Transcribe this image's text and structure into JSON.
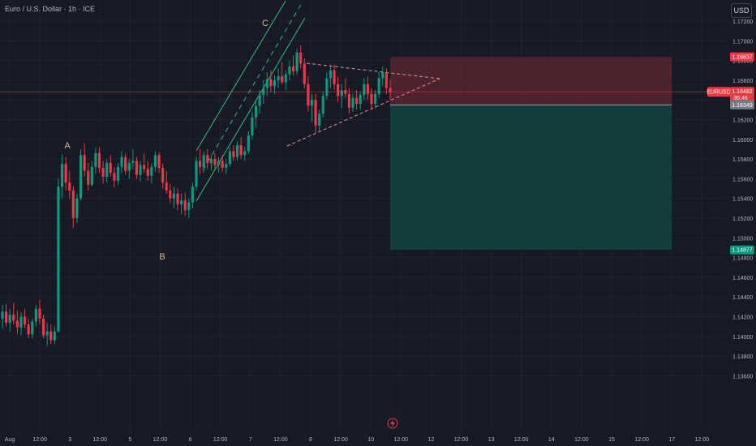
{
  "chart_data": {
    "type": "candlestick",
    "title": "Euro / U.S. Dollar · 1h · ICE",
    "currency_button": "USD",
    "price_axis": {
      "ticks": [
        1.172,
        1.17,
        1.168,
        1.166,
        1.164,
        1.162,
        1.16,
        1.158,
        1.156,
        1.154,
        1.152,
        1.15,
        1.148,
        1.146,
        1.144,
        1.142,
        1.14,
        1.138,
        1.136
      ],
      "tick_labels": [
        "1.17200",
        "1.17000",
        "1.16800",
        "1.16600",
        "1.16400",
        "1.16200",
        "1.16000",
        "1.15800",
        "1.15600",
        "1.15400",
        "1.15200",
        "1.15000",
        "1.14800",
        "1.14600",
        "1.14400",
        "1.14200",
        "1.14000",
        "1.13800",
        "1.13600"
      ],
      "range": [
        1.1355,
        1.1733
      ]
    },
    "time_axis": {
      "labels": [
        "Aug",
        "12:00",
        "3",
        "12:00",
        "5",
        "12:00",
        "6",
        "12:00",
        "7",
        "12:00",
        "8",
        "12:00",
        "10",
        "12:00",
        "12",
        "12:00",
        "13",
        "12:00",
        "14",
        "12:00",
        "15",
        "12:00",
        "17",
        "12:00"
      ]
    },
    "wave_labels": [
      "A",
      "B",
      "C"
    ],
    "position": {
      "stop_label": "1.16837",
      "entry_label": "1.16349",
      "target_label": "1.14877",
      "stop": 1.16837,
      "entry": 1.16349,
      "target": 1.14877
    },
    "current_price": {
      "symbol": "EURUSD",
      "price_label": "1.16482",
      "countdown": "36:46",
      "price": 1.16482
    },
    "candles": [
      [
        1.1418,
        1.1432,
        1.1408,
        1.1425
      ],
      [
        1.1425,
        1.1433,
        1.141,
        1.1414
      ],
      [
        1.1414,
        1.1428,
        1.1405,
        1.1422
      ],
      [
        1.1422,
        1.1434,
        1.1412,
        1.1416
      ],
      [
        1.1416,
        1.1426,
        1.1402,
        1.1409
      ],
      [
        1.1409,
        1.1424,
        1.1401,
        1.142
      ],
      [
        1.142,
        1.1428,
        1.1408,
        1.1412
      ],
      [
        1.1412,
        1.1418,
        1.1398,
        1.1402
      ],
      [
        1.1402,
        1.1418,
        1.1398,
        1.1415
      ],
      [
        1.1415,
        1.1432,
        1.141,
        1.1428
      ],
      [
        1.1428,
        1.1437,
        1.1412,
        1.1418
      ],
      [
        1.1418,
        1.1422,
        1.1398,
        1.1401
      ],
      [
        1.1401,
        1.1414,
        1.139,
        1.1405
      ],
      [
        1.1405,
        1.1412,
        1.1392,
        1.1396
      ],
      [
        1.1396,
        1.141,
        1.1392,
        1.1405
      ],
      [
        1.1405,
        1.156,
        1.1404,
        1.1552
      ],
      [
        1.1552,
        1.1585,
        1.154,
        1.1575
      ],
      [
        1.1575,
        1.1582,
        1.1548,
        1.1556
      ],
      [
        1.1556,
        1.1568,
        1.154,
        1.1548
      ],
      [
        1.1548,
        1.1553,
        1.151,
        1.152
      ],
      [
        1.152,
        1.1545,
        1.1515,
        1.154
      ],
      [
        1.154,
        1.159,
        1.1538,
        1.1584
      ],
      [
        1.1584,
        1.1596,
        1.1562,
        1.1568
      ],
      [
        1.1568,
        1.1576,
        1.1548,
        1.1554
      ],
      [
        1.1554,
        1.1578,
        1.1552,
        1.1572
      ],
      [
        1.1572,
        1.1592,
        1.1565,
        1.1586
      ],
      [
        1.1586,
        1.1592,
        1.1566,
        1.1571
      ],
      [
        1.1571,
        1.1578,
        1.1555,
        1.1562
      ],
      [
        1.1562,
        1.158,
        1.1556,
        1.1576
      ],
      [
        1.1576,
        1.1584,
        1.1562,
        1.1566
      ],
      [
        1.1566,
        1.1572,
        1.1551,
        1.1558
      ],
      [
        1.1558,
        1.1576,
        1.1554,
        1.1572
      ],
      [
        1.1572,
        1.1588,
        1.1566,
        1.1582
      ],
      [
        1.1582,
        1.1586,
        1.1564,
        1.1568
      ],
      [
        1.1568,
        1.158,
        1.156,
        1.1576
      ],
      [
        1.1576,
        1.159,
        1.157,
        1.1578
      ],
      [
        1.1578,
        1.1582,
        1.156,
        1.1564
      ],
      [
        1.1564,
        1.1578,
        1.1557,
        1.1574
      ],
      [
        1.1574,
        1.1586,
        1.1566,
        1.157
      ],
      [
        1.157,
        1.1578,
        1.1558,
        1.1563
      ],
      [
        1.1563,
        1.1576,
        1.1555,
        1.1572
      ],
      [
        1.1572,
        1.1588,
        1.1567,
        1.1584
      ],
      [
        1.1584,
        1.1587,
        1.1566,
        1.1571
      ],
      [
        1.1571,
        1.1575,
        1.155,
        1.1556
      ],
      [
        1.1556,
        1.1568,
        1.1545,
        1.1548
      ],
      [
        1.1548,
        1.1555,
        1.1535,
        1.154
      ],
      [
        1.154,
        1.1552,
        1.153,
        1.1545
      ],
      [
        1.1545,
        1.155,
        1.1528,
        1.1534
      ],
      [
        1.1534,
        1.1545,
        1.1524,
        1.1538
      ],
      [
        1.1538,
        1.1546,
        1.1522,
        1.1528
      ],
      [
        1.1528,
        1.154,
        1.152,
        1.1536
      ],
      [
        1.1536,
        1.1556,
        1.153,
        1.1552
      ],
      [
        1.1552,
        1.1582,
        1.1548,
        1.1578
      ],
      [
        1.1578,
        1.159,
        1.1565,
        1.1572
      ],
      [
        1.1572,
        1.1588,
        1.1566,
        1.1584
      ],
      [
        1.1584,
        1.159,
        1.157,
        1.1576
      ],
      [
        1.1576,
        1.1584,
        1.1568,
        1.158
      ],
      [
        1.158,
        1.1586,
        1.157,
        1.1574
      ],
      [
        1.1574,
        1.1582,
        1.1566,
        1.1578
      ],
      [
        1.1578,
        1.1584,
        1.1567,
        1.1571
      ],
      [
        1.1571,
        1.158,
        1.1565,
        1.1575
      ],
      [
        1.1575,
        1.1592,
        1.1572,
        1.1588
      ],
      [
        1.1588,
        1.1594,
        1.1578,
        1.1582
      ],
      [
        1.1582,
        1.1598,
        1.1578,
        1.1594
      ],
      [
        1.1594,
        1.1602,
        1.158,
        1.1584
      ],
      [
        1.1584,
        1.1592,
        1.1578,
        1.1588
      ],
      [
        1.1588,
        1.1608,
        1.1585,
        1.1604
      ],
      [
        1.1604,
        1.1628,
        1.16,
        1.1622
      ],
      [
        1.1622,
        1.164,
        1.1612,
        1.1634
      ],
      [
        1.1634,
        1.165,
        1.1626,
        1.1645
      ],
      [
        1.1645,
        1.166,
        1.1636,
        1.1652
      ],
      [
        1.1652,
        1.1668,
        1.1644,
        1.1661
      ],
      [
        1.1661,
        1.167,
        1.1648,
        1.1654
      ],
      [
        1.1654,
        1.1665,
        1.1646,
        1.166
      ],
      [
        1.166,
        1.1672,
        1.1652,
        1.1664
      ],
      [
        1.1664,
        1.1678,
        1.1656,
        1.1658
      ],
      [
        1.1658,
        1.167,
        1.165,
        1.1666
      ],
      [
        1.1666,
        1.168,
        1.166,
        1.1674
      ],
      [
        1.1674,
        1.1685,
        1.1665,
        1.1669
      ],
      [
        1.1669,
        1.1692,
        1.1666,
        1.1688
      ],
      [
        1.1688,
        1.1695,
        1.1672,
        1.1677
      ],
      [
        1.1677,
        1.1682,
        1.1652,
        1.1656
      ],
      [
        1.1656,
        1.1664,
        1.1628,
        1.1634
      ],
      [
        1.1634,
        1.1646,
        1.1618,
        1.164
      ],
      [
        1.164,
        1.1646,
        1.1606,
        1.1614
      ],
      [
        1.1614,
        1.163,
        1.1608,
        1.1626
      ],
      [
        1.1626,
        1.1648,
        1.1622,
        1.1644
      ],
      [
        1.1644,
        1.1668,
        1.164,
        1.1662
      ],
      [
        1.1662,
        1.1676,
        1.1652,
        1.167
      ],
      [
        1.167,
        1.1676,
        1.165,
        1.1656
      ],
      [
        1.1656,
        1.1664,
        1.1638,
        1.1644
      ],
      [
        1.1644,
        1.1656,
        1.1632,
        1.165
      ],
      [
        1.165,
        1.1662,
        1.1642,
        1.1646
      ],
      [
        1.1646,
        1.1652,
        1.1626,
        1.1632
      ],
      [
        1.1632,
        1.1646,
        1.1628,
        1.1642
      ],
      [
        1.1642,
        1.165,
        1.163,
        1.1636
      ],
      [
        1.1636,
        1.1648,
        1.163,
        1.1645
      ],
      [
        1.1645,
        1.1662,
        1.164,
        1.1656
      ],
      [
        1.1656,
        1.1664,
        1.164,
        1.1646
      ],
      [
        1.1646,
        1.1652,
        1.163,
        1.1636
      ],
      [
        1.1636,
        1.165,
        1.1632,
        1.1646
      ],
      [
        1.1646,
        1.1668,
        1.1642,
        1.1662
      ],
      [
        1.1662,
        1.1674,
        1.1654,
        1.1668
      ],
      [
        1.1668,
        1.1672,
        1.1646,
        1.1652
      ],
      [
        1.1652,
        1.166,
        1.164,
        1.1648
      ]
    ]
  }
}
